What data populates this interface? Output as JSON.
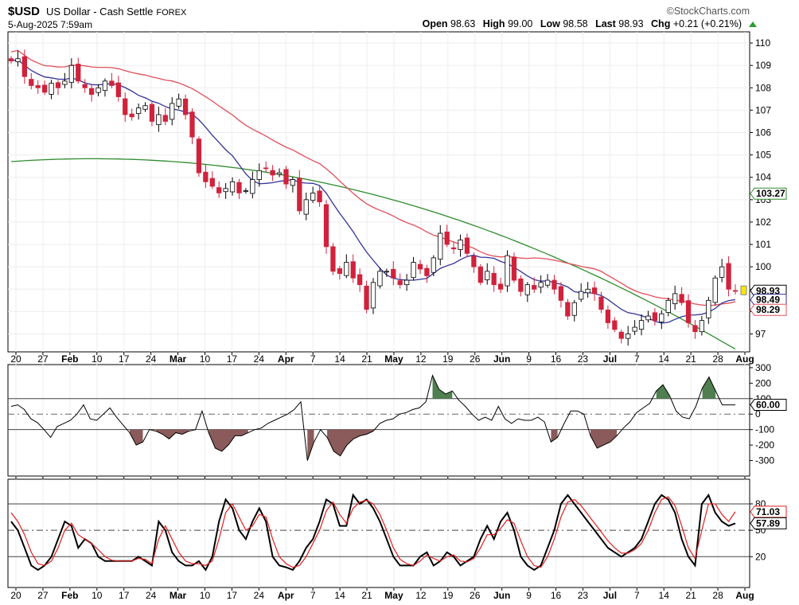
{
  "header": {
    "symbol": "$USD",
    "name": "US Dollar - Cash Settle",
    "exchange": "FOREX",
    "date": "5-Aug-2025 7:59am",
    "brand": "©StockCharts.com",
    "open_label": "Open",
    "open": "98.63",
    "high_label": "High",
    "high": "99.00",
    "low_label": "Low",
    "low": "98.58",
    "last_label": "Last",
    "last": "98.93",
    "chg_label": "Chg",
    "chg": "+0.21 (+0.21%)"
  },
  "colors": {
    "up_candle": "#ffffff",
    "down_candle": "#d0223c",
    "ma_short": "#33339a",
    "ma_mid": "#e0505a",
    "ma_long": "#2e8b2e",
    "cci_line": "#000000",
    "cci_pos_fill": "#4f7f4f",
    "cci_neg_fill": "#8b5a5a",
    "stoch_k": "#000000",
    "stoch_d": "#e02020"
  },
  "chart_data": [
    {
      "type": "candlestick",
      "panel": "price",
      "x_tick_labels": [
        "20",
        "27",
        "Feb",
        "10",
        "17",
        "24",
        "Mar",
        "10",
        "17",
        "24",
        "Apr",
        "7",
        "14",
        "21",
        "May",
        "12",
        "19",
        "26",
        "Jun",
        "9",
        "16",
        "23",
        "Jul",
        "7",
        "14",
        "21",
        "28",
        "Aug"
      ],
      "ylim": [
        96.2,
        110.5
      ],
      "y_ticks": [
        97,
        98,
        99,
        100,
        101,
        102,
        103,
        104,
        105,
        106,
        107,
        108,
        109,
        110
      ],
      "y_tick_labels": [
        "97",
        "98",
        "",
        "100",
        "101",
        "102",
        "103",
        "104",
        "105",
        "106",
        "107",
        "108",
        "109",
        "110"
      ],
      "value_labels": [
        {
          "text": "98.93",
          "value": 98.93,
          "style": "yellow"
        },
        {
          "text": "98.49",
          "value": 98.49,
          "style": "blue"
        },
        {
          "text": "98.29",
          "value": 98.29,
          "style": "red"
        },
        {
          "text": "103.27",
          "value": 103.27,
          "style": "green"
        }
      ],
      "closes": [
        109.2,
        109.3,
        108.5,
        108.1,
        108.0,
        107.8,
        108.2,
        108.0,
        108.3,
        109.0,
        108.3,
        108.0,
        107.7,
        108.0,
        108.3,
        108.1,
        107.6,
        106.8,
        106.7,
        107.1,
        107.2,
        106.5,
        106.8,
        106.5,
        107.3,
        107.5,
        106.8,
        105.8,
        104.2,
        103.8,
        103.6,
        103.3,
        103.5,
        103.8,
        103.3,
        103.4,
        103.9,
        104.3,
        104.4,
        104.1,
        104.2,
        103.7,
        103.9,
        102.5,
        103.0,
        103.3,
        102.9,
        100.9,
        99.8,
        99.7,
        100.2,
        99.5,
        99.2,
        98.1,
        99.3,
        99.8,
        99.8,
        99.5,
        99.2,
        99.4,
        100.2,
        99.9,
        99.6,
        100.4,
        101.5,
        101.0,
        100.8,
        101.2,
        100.6,
        100.0,
        99.3,
        99.8,
        99.2,
        99.0,
        100.5,
        99.4,
        98.9,
        99.2,
        99.0,
        99.3,
        99.4,
        99.0,
        98.5,
        97.8,
        98.4,
        98.9,
        99.0,
        98.8,
        98.1,
        97.5,
        97.2,
        96.8,
        97.0,
        97.3,
        97.6,
        97.8,
        97.6,
        97.9,
        98.5,
        98.8,
        98.4,
        97.5,
        97.1,
        97.6,
        98.5,
        99.5,
        100.0,
        99.0,
        98.93
      ],
      "series": [
        {
          "name": "MA short",
          "values": "computed"
        },
        {
          "name": "MA mid",
          "values": "computed"
        },
        {
          "name": "MA long",
          "values": "computed"
        }
      ]
    },
    {
      "type": "line",
      "panel": "cci",
      "ylim": [
        -400,
        320
      ],
      "y_ticks": [
        300,
        200,
        100,
        0,
        -100,
        -200,
        -300
      ],
      "y_tick_labels": [
        "300",
        "200",
        "100",
        "0",
        "-100",
        "-200",
        "-300"
      ],
      "hlines": [
        100,
        0,
        -100
      ],
      "value_labels": [
        {
          "text": "60.00",
          "value": 60
        }
      ],
      "values": [
        50,
        60,
        30,
        -30,
        -55,
        -100,
        -150,
        -80,
        -60,
        -40,
        0,
        60,
        -30,
        -40,
        0,
        40,
        -20,
        -70,
        -120,
        -200,
        -180,
        -100,
        -110,
        -130,
        -160,
        -120,
        -130,
        -110,
        -100,
        20,
        -120,
        -220,
        -240,
        -200,
        -140,
        -140,
        -120,
        -100,
        -90,
        -60,
        -40,
        -20,
        0,
        30,
        80,
        -300,
        -180,
        -100,
        -150,
        -240,
        -270,
        -200,
        -160,
        -140,
        -130,
        -110,
        -60,
        -40,
        -30,
        0,
        10,
        30,
        40,
        80,
        250,
        160,
        130,
        150,
        90,
        50,
        0,
        -40,
        -20,
        -40,
        50,
        -30,
        -60,
        -30,
        -40,
        -40,
        -20,
        -50,
        -180,
        -150,
        -60,
        20,
        20,
        0,
        -140,
        -220,
        -200,
        -180,
        -140,
        -90,
        -50,
        10,
        40,
        70,
        150,
        190,
        120,
        20,
        -20,
        -30,
        50,
        170,
        240,
        150,
        60,
        60,
        60
      ]
    },
    {
      "type": "line",
      "panel": "stochastic",
      "ylim": [
        -15,
        108
      ],
      "y_ticks": [
        80,
        50,
        20
      ],
      "y_tick_labels": [
        "80",
        "50",
        "20"
      ],
      "hlines": [
        80,
        50,
        20
      ],
      "value_labels": [
        {
          "text": "71.03",
          "value": 71.03,
          "style": "red"
        },
        {
          "text": "57.89",
          "value": 57.89,
          "style": "black"
        }
      ],
      "series": [
        {
          "name": "%K",
          "values": [
            60,
            50,
            30,
            10,
            5,
            10,
            20,
            40,
            60,
            55,
            30,
            40,
            35,
            20,
            15,
            15,
            15,
            15,
            15,
            20,
            15,
            10,
            60,
            50,
            25,
            15,
            10,
            10,
            15,
            5,
            20,
            60,
            85,
            75,
            50,
            40,
            60,
            75,
            60,
            20,
            10,
            8,
            5,
            15,
            30,
            40,
            60,
            85,
            80,
            55,
            55,
            90,
            80,
            85,
            75,
            60,
            40,
            20,
            10,
            10,
            10,
            20,
            25,
            10,
            15,
            25,
            20,
            10,
            15,
            20,
            40,
            55,
            40,
            60,
            70,
            50,
            20,
            10,
            5,
            10,
            30,
            50,
            80,
            90,
            80,
            70,
            60,
            50,
            40,
            30,
            25,
            20,
            25,
            30,
            40,
            60,
            80,
            90,
            85,
            70,
            40,
            20,
            10,
            80,
            90,
            70,
            60,
            55,
            57.89
          ]
        },
        {
          "name": "%D",
          "values": [
            70,
            60,
            45,
            25,
            12,
            10,
            15,
            30,
            50,
            58,
            45,
            40,
            35,
            28,
            20,
            16,
            15,
            15,
            15,
            18,
            17,
            12,
            40,
            55,
            40,
            25,
            15,
            12,
            12,
            10,
            15,
            40,
            70,
            80,
            65,
            50,
            55,
            68,
            65,
            40,
            20,
            12,
            8,
            10,
            20,
            35,
            50,
            72,
            82,
            68,
            58,
            75,
            82,
            84,
            80,
            68,
            50,
            30,
            17,
            12,
            10,
            15,
            22,
            18,
            15,
            20,
            22,
            15,
            14,
            18,
            30,
            45,
            45,
            52,
            62,
            58,
            38,
            20,
            10,
            8,
            20,
            40,
            65,
            82,
            85,
            78,
            68,
            58,
            48,
            38,
            30,
            24,
            24,
            28,
            35,
            50,
            70,
            85,
            88,
            78,
            55,
            30,
            18,
            50,
            80,
            80,
            68,
            60,
            71.03
          ]
        }
      ]
    }
  ]
}
